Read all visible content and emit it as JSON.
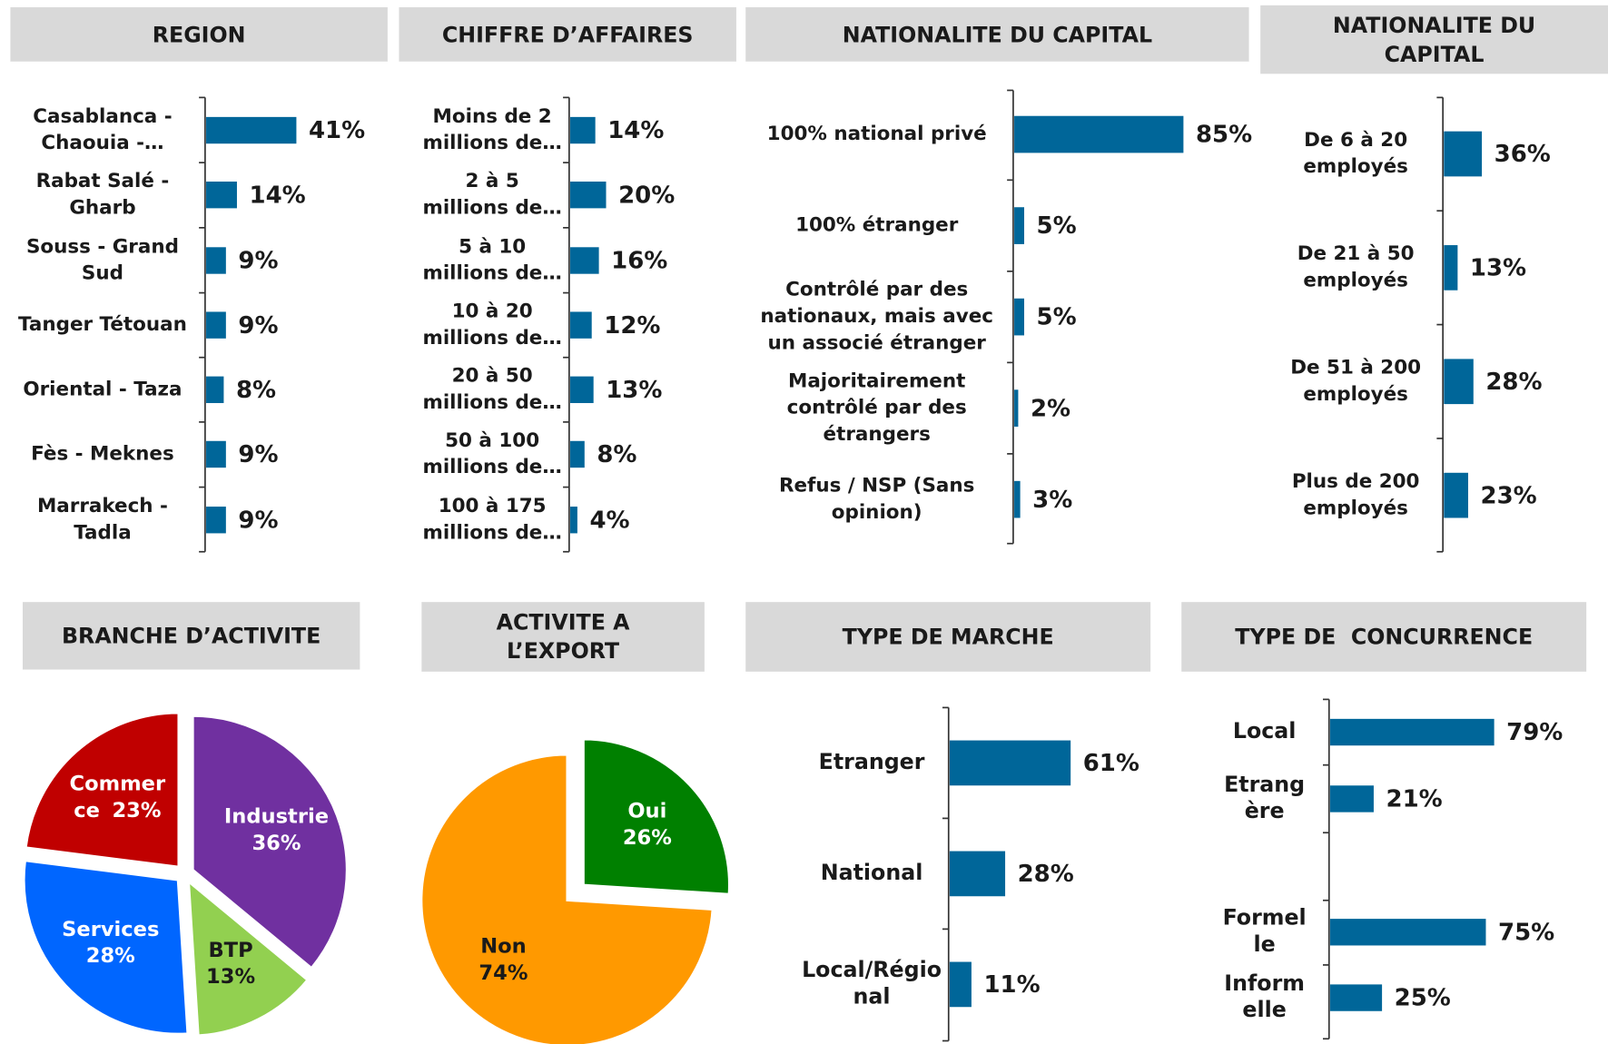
{
  "chart_data": [
    {
      "type": "bar",
      "title": "REGION",
      "color": "#006699",
      "categories": [
        [
          "Casablanca -",
          "Chaouia -…"
        ],
        [
          "Rabat Salé -",
          "Gharb"
        ],
        [
          "Souss - Grand",
          "Sud"
        ],
        [
          "Tanger Tétouan"
        ],
        [
          "Oriental - Taza"
        ],
        [
          "Fès - Meknes"
        ],
        [
          "Marrakech -",
          "Tadla"
        ]
      ],
      "values": [
        41,
        14,
        9,
        9,
        8,
        9,
        9
      ],
      "value_labels": [
        "41%",
        "14%",
        "9%",
        "9%",
        "8%",
        "9%",
        "9%"
      ]
    },
    {
      "type": "bar",
      "title": "CHIFFRE D’AFFAIRES",
      "color": "#006699",
      "categories": [
        [
          "Moins de 2",
          "millions de…"
        ],
        [
          "2 à 5",
          "millions de…"
        ],
        [
          "5 à 10",
          "millions de…"
        ],
        [
          "10 à 20",
          "millions de…"
        ],
        [
          "20 à 50",
          "millions de…"
        ],
        [
          "50 à 100",
          "millions de…"
        ],
        [
          "100 à 175",
          "millions de…"
        ]
      ],
      "values": [
        14,
        20,
        16,
        12,
        13,
        8,
        4
      ],
      "value_labels": [
        "14%",
        "20%",
        "16%",
        "12%",
        "13%",
        "8%",
        "4%"
      ]
    },
    {
      "type": "bar",
      "title": "NATIONALITE DU CAPITAL",
      "color": "#006699",
      "categories": [
        [
          "100% national privé"
        ],
        [
          "100% étranger"
        ],
        [
          "Contrôlé par des",
          "nationaux, mais avec",
          "un associé étranger"
        ],
        [
          "Majoritairement",
          "contrôlé par des",
          "étrangers"
        ],
        [
          "Refus / NSP (Sans",
          "opinion)"
        ]
      ],
      "values": [
        85,
        5,
        5,
        2,
        3
      ],
      "value_labels": [
        "85%",
        "5%",
        "5%",
        "2%",
        "3%"
      ]
    },
    {
      "type": "bar",
      "title": "NATIONALITE DU CAPITAL",
      "color": "#006699",
      "categories": [
        [
          "De 6 à 20",
          "employés"
        ],
        [
          "De 21 à 50",
          "employés"
        ],
        [
          "De 51 à 200",
          "employés"
        ],
        [
          "Plus de 200",
          "employés"
        ]
      ],
      "values": [
        36,
        13,
        28,
        23
      ],
      "value_labels": [
        "36%",
        "13%",
        "28%",
        "23%"
      ]
    },
    {
      "type": "pie",
      "title": "BRANCHE D’ACTIVITE",
      "categories": [
        [
          "Industrie"
        ],
        [
          "BTP"
        ],
        [
          "Services"
        ],
        [
          "Commer",
          "ce"
        ]
      ],
      "values": [
        36,
        13,
        28,
        23
      ],
      "value_labels": [
        "36%",
        "13%",
        "28%",
        "23%"
      ],
      "colors": [
        "#7030a0",
        "#92d050",
        "#0066ff",
        "#c00000"
      ]
    },
    {
      "type": "pie",
      "title": "ACTIVITE A L’EXPORT",
      "categories": [
        [
          "Oui"
        ],
        [
          "Non"
        ]
      ],
      "values": [
        26,
        74
      ],
      "value_labels": [
        "26%",
        "74%"
      ],
      "colors": [
        "#008000",
        "#ff9900"
      ]
    },
    {
      "type": "bar",
      "title": "TYPE DE MARCHE",
      "color": "#006699",
      "categories": [
        [
          "Etranger"
        ],
        [
          "National"
        ],
        [
          "Local/Régio",
          "nal"
        ]
      ],
      "values": [
        61,
        28,
        11
      ],
      "value_labels": [
        "61%",
        "28%",
        "11%"
      ]
    },
    {
      "type": "bar",
      "title": "TYPE DE  CONCURRENCE",
      "color": "#006699",
      "categories": [
        [
          "Local"
        ],
        [
          "Etrang",
          "ère"
        ],
        [
          "Formel",
          "le"
        ],
        [
          "Inform",
          "elle"
        ]
      ],
      "values": [
        79,
        21,
        75,
        25
      ],
      "value_labels": [
        "79%",
        "21%",
        "75%",
        "25%"
      ]
    }
  ]
}
